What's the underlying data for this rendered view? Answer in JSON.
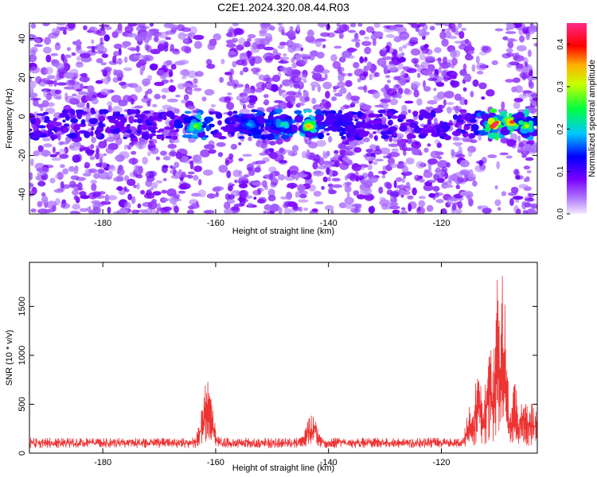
{
  "figure": {
    "title": "C2E1.2024.320.08.44.R03"
  },
  "chart_data": [
    {
      "type": "heatmap",
      "xlabel": "Height of straight line (km)",
      "ylabel": "Frequency (Hz)",
      "xlim": [
        -193,
        -103
      ],
      "ylim": [
        -50,
        48
      ],
      "xticks": [
        -180,
        -160,
        -140,
        -120
      ],
      "yticks": [
        -40,
        -20,
        0,
        20,
        40
      ],
      "colorbar": {
        "label": "Normalized spectral amplitude",
        "range": [
          0.0,
          0.45
        ],
        "ticks": [
          0.0,
          0.1,
          0.2,
          0.3,
          0.4
        ]
      },
      "hotspots": [
        {
          "x": -163.5,
          "y": -5,
          "amplitude": 0.28
        },
        {
          "x": -154,
          "y": -4,
          "amplitude": 0.18
        },
        {
          "x": -148,
          "y": -4,
          "amplitude": 0.22
        },
        {
          "x": -143.5,
          "y": -5,
          "amplitude": 0.35
        },
        {
          "x": -138,
          "y": -3,
          "amplitude": 0.12
        },
        {
          "x": -110.5,
          "y": -4,
          "amplitude": 0.45
        },
        {
          "x": -107.5,
          "y": -3,
          "amplitude": 0.38
        },
        {
          "x": -105,
          "y": -5,
          "amplitude": 0.3
        }
      ],
      "grid": false
    },
    {
      "type": "line",
      "xlabel": "Height of straight line (km)",
      "ylabel": "SNR (10 * v/v)",
      "xlim": [
        -193,
        -103
      ],
      "ylim": [
        0,
        1950
      ],
      "xticks": [
        -180,
        -160,
        -140,
        -120
      ],
      "yticks": [
        0,
        500,
        1000,
        1500
      ],
      "color": "#ee3333",
      "baseline": 150,
      "peaks": [
        {
          "x": -161.5,
          "y": 740
        },
        {
          "x": -143,
          "y": 390
        },
        {
          "x": -115,
          "y": 500
        },
        {
          "x": -113.5,
          "y": 950
        },
        {
          "x": -111.5,
          "y": 1350
        },
        {
          "x": -110,
          "y": 1900
        },
        {
          "x": -109,
          "y": 1830
        },
        {
          "x": -107,
          "y": 700
        },
        {
          "x": -105.5,
          "y": 700
        },
        {
          "x": -103.5,
          "y": 500
        }
      ],
      "grid": false
    }
  ]
}
